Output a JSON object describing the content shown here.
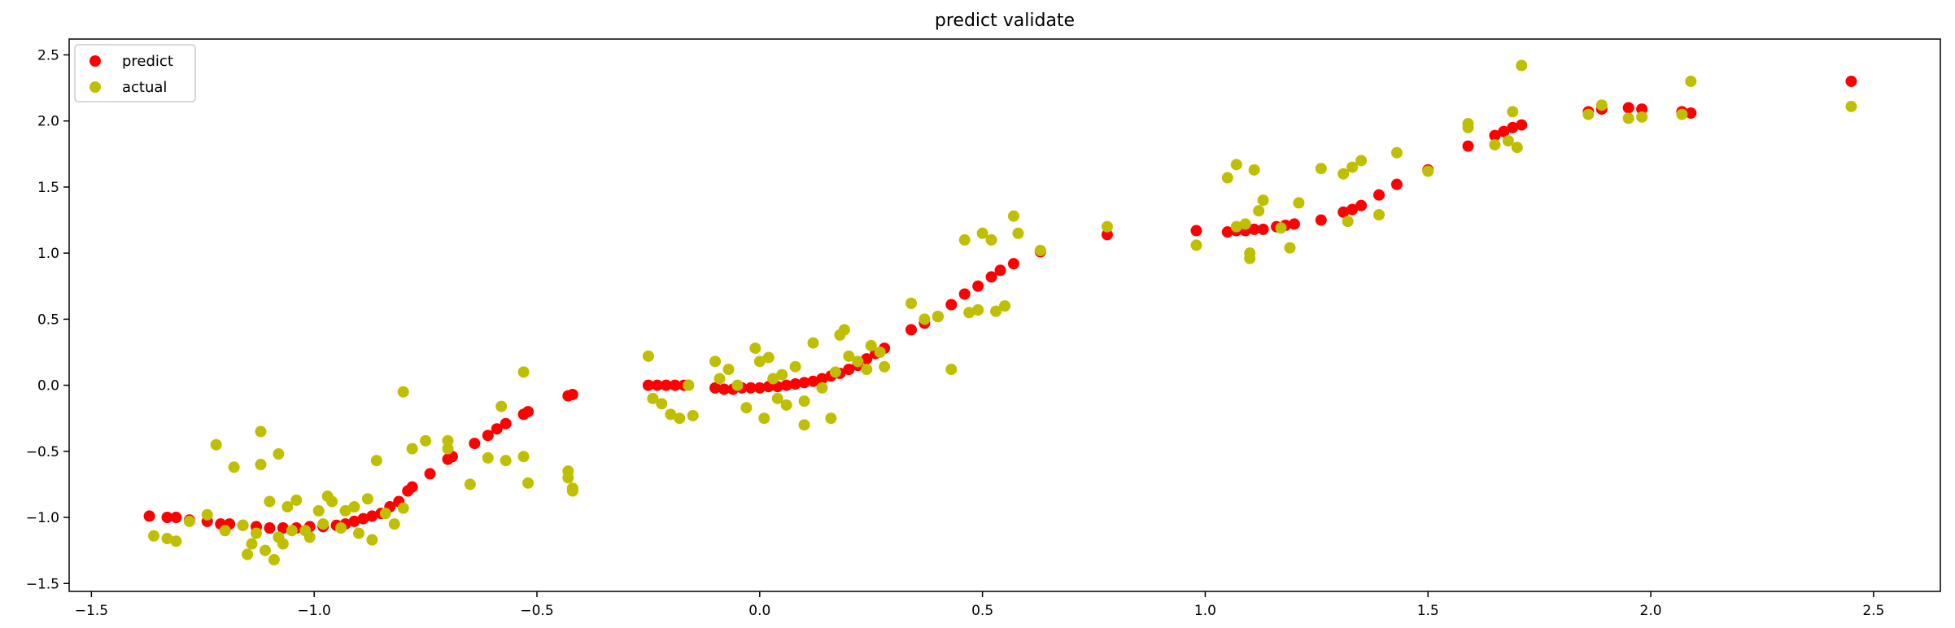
{
  "chart_data": {
    "type": "scatter",
    "title": "predict validate",
    "xlabel": "",
    "ylabel": "",
    "xlim": [
      -1.55,
      2.65
    ],
    "ylim": [
      -1.56,
      2.62
    ],
    "xticks": [
      -1.5,
      -1.0,
      -0.5,
      0.0,
      0.5,
      1.0,
      1.5,
      2.0,
      2.5
    ],
    "yticks": [
      -1.5,
      -1.0,
      -0.5,
      0.0,
      0.5,
      1.0,
      1.5,
      2.0,
      2.5
    ],
    "xtick_labels": [
      "−1.5",
      "−1.0",
      "−0.5",
      "0.0",
      "0.5",
      "1.0",
      "1.5",
      "2.0",
      "2.5"
    ],
    "ytick_labels": [
      "−1.5",
      "−1.0",
      "−0.5",
      "0.0",
      "0.5",
      "1.0",
      "1.5",
      "2.0",
      "2.5"
    ],
    "grid": false,
    "legend_position": "top-left",
    "series": [
      {
        "name": "predict",
        "color": "#ff0000",
        "points": [
          [
            -1.37,
            -0.99
          ],
          [
            -1.33,
            -1.0
          ],
          [
            -1.31,
            -1.0
          ],
          [
            -1.28,
            -1.02
          ],
          [
            -1.24,
            -1.03
          ],
          [
            -1.21,
            -1.05
          ],
          [
            -1.19,
            -1.05
          ],
          [
            -1.16,
            -1.06
          ],
          [
            -1.13,
            -1.07
          ],
          [
            -1.1,
            -1.08
          ],
          [
            -1.07,
            -1.08
          ],
          [
            -1.04,
            -1.08
          ],
          [
            -1.01,
            -1.07
          ],
          [
            -0.98,
            -1.07
          ],
          [
            -0.95,
            -1.06
          ],
          [
            -0.93,
            -1.05
          ],
          [
            -0.91,
            -1.03
          ],
          [
            -0.89,
            -1.01
          ],
          [
            -0.87,
            -0.99
          ],
          [
            -0.85,
            -0.97
          ],
          [
            -0.83,
            -0.92
          ],
          [
            -0.81,
            -0.88
          ],
          [
            -0.79,
            -0.8
          ],
          [
            -0.78,
            -0.77
          ],
          [
            -0.74,
            -0.67
          ],
          [
            -0.7,
            -0.56
          ],
          [
            -0.69,
            -0.54
          ],
          [
            -0.64,
            -0.44
          ],
          [
            -0.61,
            -0.38
          ],
          [
            -0.59,
            -0.33
          ],
          [
            -0.57,
            -0.29
          ],
          [
            -0.53,
            -0.22
          ],
          [
            -0.52,
            -0.2
          ],
          [
            -0.43,
            -0.08
          ],
          [
            -0.42,
            -0.07
          ],
          [
            -0.25,
            0.0
          ],
          [
            -0.23,
            0.0
          ],
          [
            -0.21,
            0.0
          ],
          [
            -0.19,
            0.0
          ],
          [
            -0.17,
            0.0
          ],
          [
            -0.16,
            0.0
          ],
          [
            -0.1,
            -0.02
          ],
          [
            -0.08,
            -0.03
          ],
          [
            -0.06,
            -0.03
          ],
          [
            -0.04,
            -0.02
          ],
          [
            -0.02,
            -0.02
          ],
          [
            0.0,
            -0.02
          ],
          [
            0.02,
            -0.01
          ],
          [
            0.04,
            -0.01
          ],
          [
            0.06,
            0.0
          ],
          [
            0.08,
            0.01
          ],
          [
            0.1,
            0.02
          ],
          [
            0.12,
            0.03
          ],
          [
            0.14,
            0.05
          ],
          [
            0.16,
            0.07
          ],
          [
            0.18,
            0.09
          ],
          [
            0.2,
            0.12
          ],
          [
            0.22,
            0.15
          ],
          [
            0.24,
            0.2
          ],
          [
            0.26,
            0.24
          ],
          [
            0.28,
            0.28
          ],
          [
            0.34,
            0.42
          ],
          [
            0.37,
            0.47
          ],
          [
            0.4,
            0.52
          ],
          [
            0.43,
            0.61
          ],
          [
            0.46,
            0.69
          ],
          [
            0.49,
            0.75
          ],
          [
            0.52,
            0.82
          ],
          [
            0.54,
            0.87
          ],
          [
            0.57,
            0.92
          ],
          [
            0.63,
            1.01
          ],
          [
            0.78,
            1.14
          ],
          [
            0.98,
            1.17
          ],
          [
            1.05,
            1.16
          ],
          [
            1.07,
            1.17
          ],
          [
            1.09,
            1.17
          ],
          [
            1.11,
            1.18
          ],
          [
            1.13,
            1.18
          ],
          [
            1.16,
            1.2
          ],
          [
            1.18,
            1.21
          ],
          [
            1.2,
            1.22
          ],
          [
            1.26,
            1.25
          ],
          [
            1.31,
            1.31
          ],
          [
            1.33,
            1.33
          ],
          [
            1.35,
            1.36
          ],
          [
            1.39,
            1.44
          ],
          [
            1.43,
            1.52
          ],
          [
            1.5,
            1.63
          ],
          [
            1.59,
            1.81
          ],
          [
            1.65,
            1.89
          ],
          [
            1.67,
            1.92
          ],
          [
            1.69,
            1.95
          ],
          [
            1.71,
            1.97
          ],
          [
            1.86,
            2.07
          ],
          [
            1.89,
            2.09
          ],
          [
            1.95,
            2.1
          ],
          [
            1.98,
            2.09
          ],
          [
            2.07,
            2.07
          ],
          [
            2.09,
            2.06
          ],
          [
            2.45,
            2.3
          ]
        ]
      },
      {
        "name": "actual",
        "color": "#bfbf00",
        "points": [
          [
            -1.36,
            -1.14
          ],
          [
            -1.33,
            -1.16
          ],
          [
            -1.31,
            -1.18
          ],
          [
            -1.28,
            -1.03
          ],
          [
            -1.24,
            -0.98
          ],
          [
            -1.22,
            -0.45
          ],
          [
            -1.2,
            -1.1
          ],
          [
            -1.18,
            -0.62
          ],
          [
            -1.16,
            -1.06
          ],
          [
            -1.15,
            -1.28
          ],
          [
            -1.14,
            -1.2
          ],
          [
            -1.13,
            -1.12
          ],
          [
            -1.12,
            -0.6
          ],
          [
            -1.12,
            -0.35
          ],
          [
            -1.11,
            -1.25
          ],
          [
            -1.1,
            -0.88
          ],
          [
            -1.09,
            -1.32
          ],
          [
            -1.08,
            -0.52
          ],
          [
            -1.08,
            -1.15
          ],
          [
            -1.07,
            -1.2
          ],
          [
            -1.06,
            -0.92
          ],
          [
            -1.05,
            -1.1
          ],
          [
            -1.04,
            -0.87
          ],
          [
            -1.02,
            -1.1
          ],
          [
            -1.01,
            -1.15
          ],
          [
            -0.99,
            -0.95
          ],
          [
            -0.98,
            -1.05
          ],
          [
            -0.97,
            -0.84
          ],
          [
            -0.96,
            -0.88
          ],
          [
            -0.94,
            -1.08
          ],
          [
            -0.93,
            -0.95
          ],
          [
            -0.91,
            -0.92
          ],
          [
            -0.9,
            -1.12
          ],
          [
            -0.88,
            -0.86
          ],
          [
            -0.87,
            -1.17
          ],
          [
            -0.86,
            -0.57
          ],
          [
            -0.84,
            -0.97
          ],
          [
            -0.82,
            -1.05
          ],
          [
            -0.8,
            -0.93
          ],
          [
            -0.8,
            -0.05
          ],
          [
            -0.78,
            -0.48
          ],
          [
            -0.75,
            -0.42
          ],
          [
            -0.7,
            -0.42
          ],
          [
            -0.7,
            -0.48
          ],
          [
            -0.65,
            -0.75
          ],
          [
            -0.61,
            -0.55
          ],
          [
            -0.58,
            -0.16
          ],
          [
            -0.57,
            -0.57
          ],
          [
            -0.53,
            0.1
          ],
          [
            -0.53,
            -0.54
          ],
          [
            -0.52,
            -0.74
          ],
          [
            -0.43,
            -0.65
          ],
          [
            -0.43,
            -0.7
          ],
          [
            -0.42,
            -0.78
          ],
          [
            -0.42,
            -0.8
          ],
          [
            -0.25,
            0.22
          ],
          [
            -0.24,
            -0.1
          ],
          [
            -0.22,
            -0.14
          ],
          [
            -0.2,
            -0.22
          ],
          [
            -0.18,
            -0.25
          ],
          [
            -0.16,
            0.0
          ],
          [
            -0.15,
            -0.23
          ],
          [
            -0.1,
            0.18
          ],
          [
            -0.09,
            0.05
          ],
          [
            -0.07,
            0.12
          ],
          [
            -0.05,
            0.0
          ],
          [
            -0.03,
            -0.17
          ],
          [
            -0.01,
            0.28
          ],
          [
            0.0,
            0.18
          ],
          [
            0.01,
            -0.25
          ],
          [
            0.02,
            0.21
          ],
          [
            0.03,
            0.05
          ],
          [
            0.04,
            -0.1
          ],
          [
            0.05,
            0.08
          ],
          [
            0.06,
            -0.15
          ],
          [
            0.08,
            0.14
          ],
          [
            0.1,
            -0.3
          ],
          [
            0.1,
            -0.12
          ],
          [
            0.12,
            0.32
          ],
          [
            0.14,
            -0.02
          ],
          [
            0.16,
            -0.25
          ],
          [
            0.17,
            0.1
          ],
          [
            0.18,
            0.38
          ],
          [
            0.19,
            0.42
          ],
          [
            0.2,
            0.22
          ],
          [
            0.22,
            0.18
          ],
          [
            0.24,
            0.12
          ],
          [
            0.25,
            0.3
          ],
          [
            0.27,
            0.25
          ],
          [
            0.28,
            0.14
          ],
          [
            0.34,
            0.62
          ],
          [
            0.37,
            0.5
          ],
          [
            0.4,
            0.52
          ],
          [
            0.43,
            0.12
          ],
          [
            0.46,
            1.1
          ],
          [
            0.47,
            0.55
          ],
          [
            0.49,
            0.57
          ],
          [
            0.5,
            1.15
          ],
          [
            0.52,
            1.1
          ],
          [
            0.53,
            0.56
          ],
          [
            0.55,
            0.6
          ],
          [
            0.57,
            1.28
          ],
          [
            0.58,
            1.15
          ],
          [
            0.63,
            1.02
          ],
          [
            0.78,
            1.2
          ],
          [
            0.98,
            1.06
          ],
          [
            1.05,
            1.57
          ],
          [
            1.07,
            1.67
          ],
          [
            1.07,
            1.2
          ],
          [
            1.09,
            1.22
          ],
          [
            1.1,
            1.0
          ],
          [
            1.1,
            0.96
          ],
          [
            1.11,
            1.63
          ],
          [
            1.12,
            1.32
          ],
          [
            1.13,
            1.4
          ],
          [
            1.17,
            1.19
          ],
          [
            1.19,
            1.04
          ],
          [
            1.21,
            1.38
          ],
          [
            1.26,
            1.64
          ],
          [
            1.31,
            1.6
          ],
          [
            1.32,
            1.24
          ],
          [
            1.33,
            1.65
          ],
          [
            1.35,
            1.7
          ],
          [
            1.39,
            1.29
          ],
          [
            1.43,
            1.76
          ],
          [
            1.5,
            1.62
          ],
          [
            1.59,
            1.98
          ],
          [
            1.59,
            1.95
          ],
          [
            1.65,
            1.82
          ],
          [
            1.68,
            1.85
          ],
          [
            1.69,
            2.07
          ],
          [
            1.7,
            1.8
          ],
          [
            1.71,
            2.42
          ],
          [
            1.86,
            2.05
          ],
          [
            1.89,
            2.12
          ],
          [
            1.95,
            2.02
          ],
          [
            1.98,
            2.03
          ],
          [
            2.07,
            2.05
          ],
          [
            2.09,
            2.3
          ],
          [
            2.45,
            2.11
          ]
        ]
      }
    ]
  }
}
